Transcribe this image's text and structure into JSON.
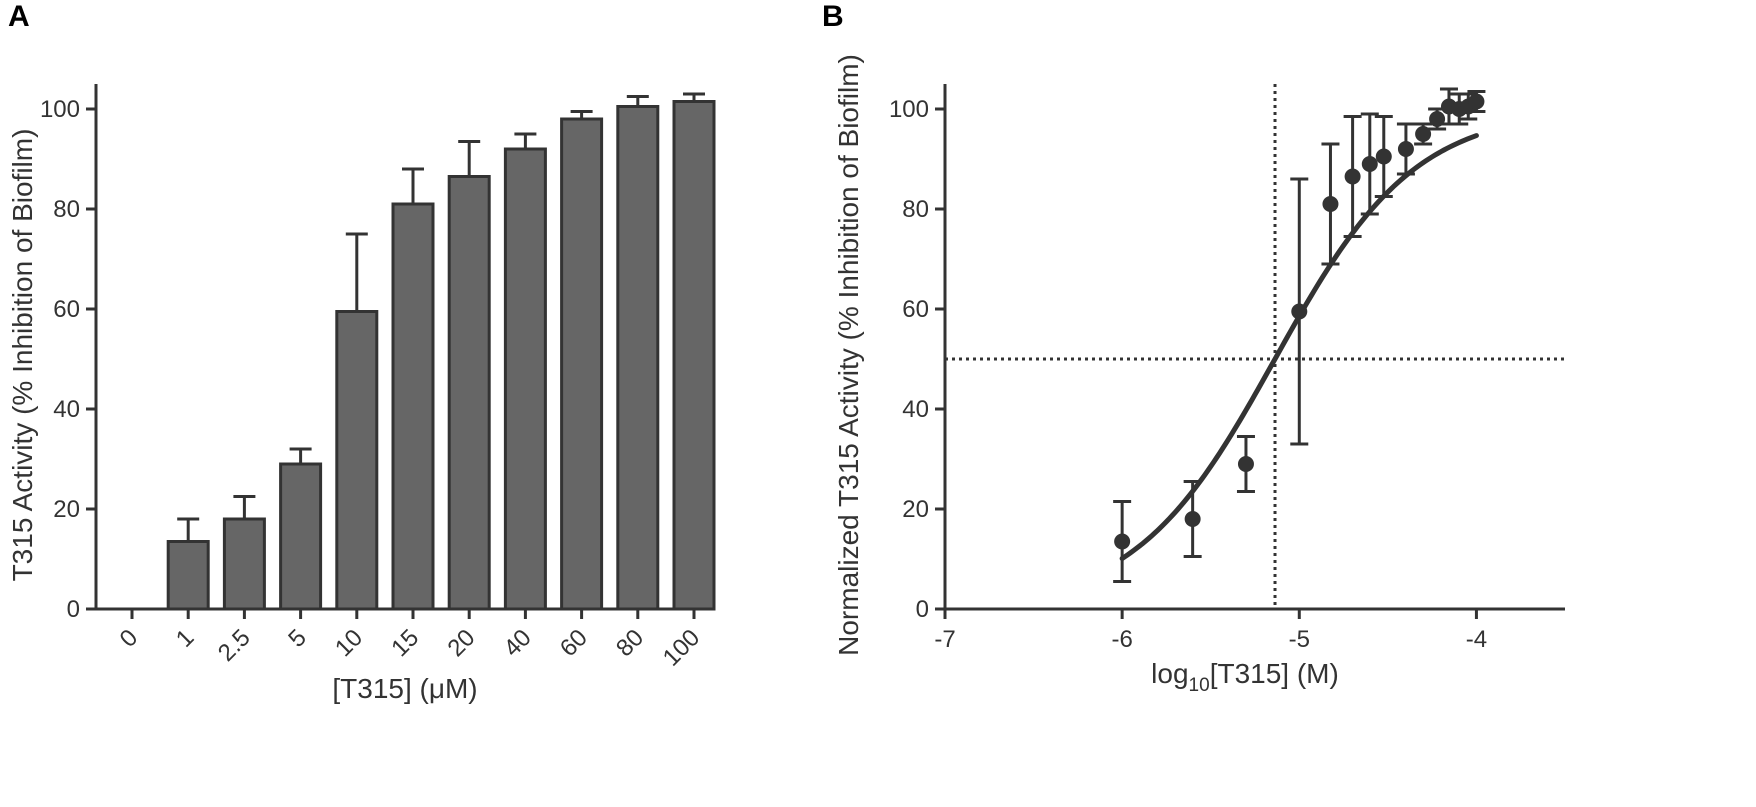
{
  "figure": {
    "colors": {
      "ink": "#333333",
      "bar_fill": "#666666",
      "panel_letter": "#000000"
    }
  },
  "chart_data": [
    {
      "panel": "A",
      "type": "bar",
      "title": "",
      "xlabel": "[T315] (μM)",
      "ylabel": "T315 Activity (% Inhibition of Biofilm)",
      "ylim": [
        0,
        105
      ],
      "yticks": [
        0,
        20,
        40,
        60,
        80,
        100
      ],
      "categories": [
        "0",
        "1",
        "2.5",
        "5",
        "10",
        "15",
        "20",
        "40",
        "60",
        "80",
        "100"
      ],
      "values": [
        0,
        13.5,
        18,
        29,
        59.5,
        81,
        86.5,
        92,
        98,
        100.5,
        101.5
      ],
      "error_upper": [
        0,
        4.5,
        4.5,
        3,
        15.5,
        7,
        7,
        3,
        1.5,
        2,
        1.5
      ],
      "grid": false,
      "legend": "none"
    },
    {
      "panel": "B",
      "type": "scatter",
      "title": "",
      "xlabel_main": "log",
      "xlabel_sub": "10",
      "xlabel_tail": "[T315] (M)",
      "ylabel": "Normalized T315 Activity (% Inhibition of Biofilm)",
      "xlim": [
        -7,
        -3.5
      ],
      "ylim": [
        0,
        105
      ],
      "xticks": [
        -7,
        -6,
        -5,
        -4
      ],
      "xtick_labels": [
        "-7",
        "-6",
        "-5",
        "-4"
      ],
      "yticks": [
        0,
        20,
        40,
        60,
        80,
        100
      ],
      "points": {
        "x": [
          -6,
          -5.602,
          -5.301,
          -5,
          -4.824,
          -4.699,
          -4.602,
          -4.523,
          -4.398,
          -4.301,
          -4.222,
          -4.155,
          -4.097,
          -4.046,
          -4
        ],
        "y": [
          13.5,
          18,
          29,
          59.5,
          81,
          86.5,
          89,
          90.5,
          92,
          95,
          98,
          100.5,
          100,
          100.5,
          101.5
        ],
        "err": [
          8,
          7.5,
          5.5,
          26.5,
          12,
          12,
          10,
          8,
          5,
          2,
          2,
          3.5,
          3,
          2.5,
          2
        ]
      },
      "fit_curve": {
        "model": "sigmoidal dose-response",
        "bottom": 0,
        "top": 100,
        "log_ic50": -5.137,
        "hill_slope": 1.1,
        "x_range": [
          -6,
          -4
        ]
      },
      "reference_lines": {
        "vertical_x": -5.137,
        "horizontal_y": 50
      },
      "grid": false,
      "legend": "none"
    }
  ]
}
